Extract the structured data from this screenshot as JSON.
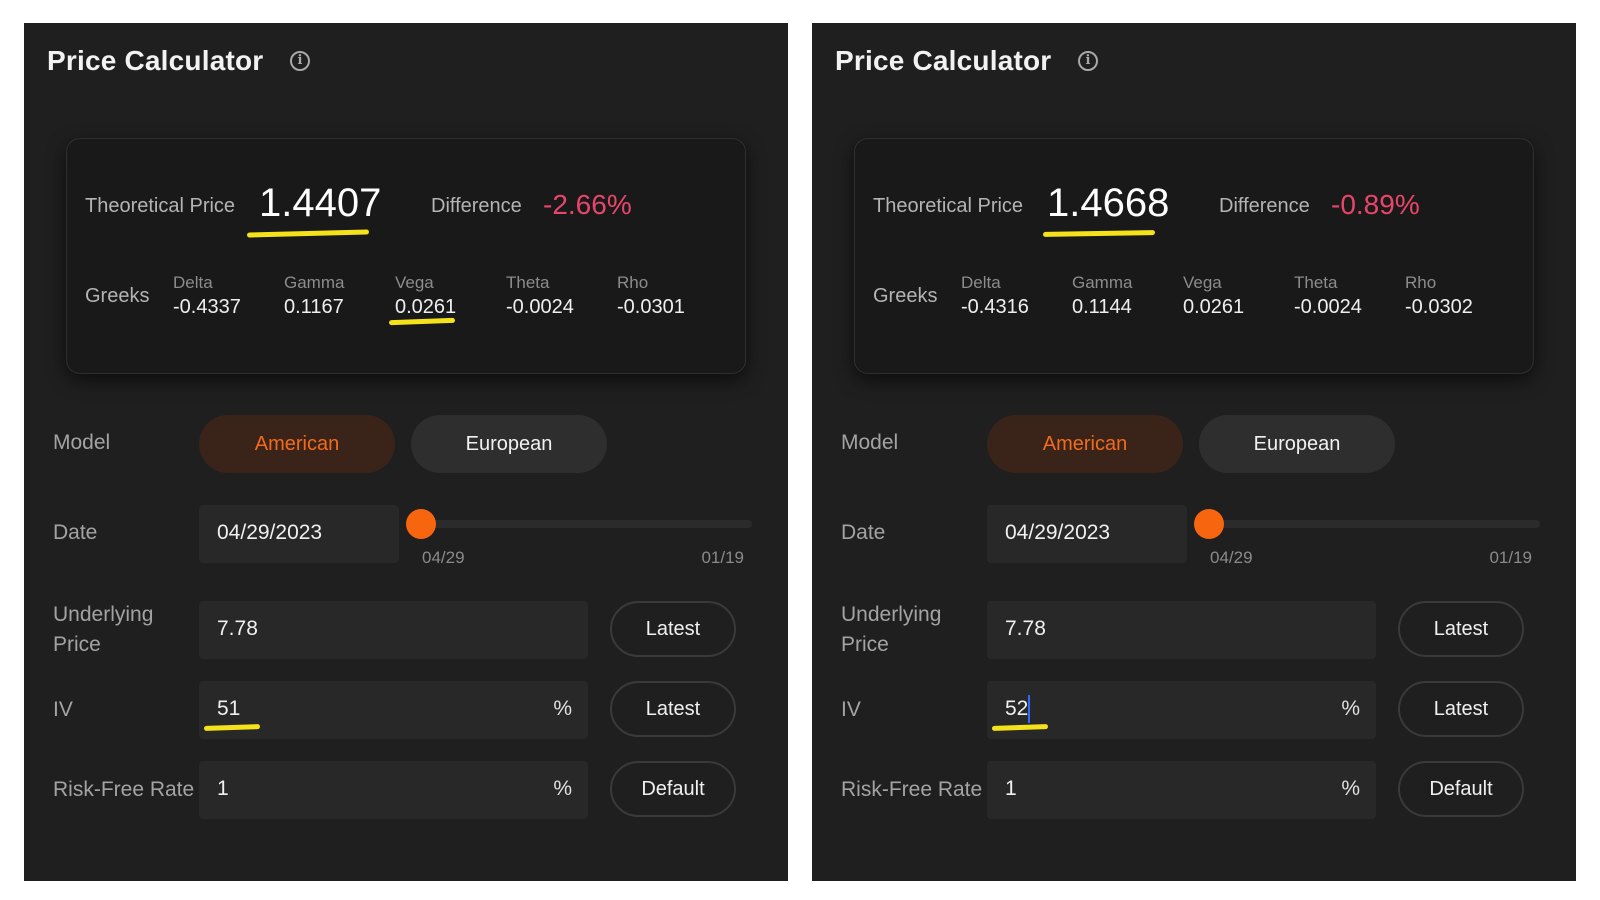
{
  "colors": {
    "panel_bg": "#1f1f1f",
    "card_bg": "#191919",
    "accent_orange": "#f26b1d",
    "difference_red": "#e8456a",
    "highlight_yellow": "#f6e21a",
    "caret_blue": "#2f6bff"
  },
  "panels": [
    {
      "title": "Price Calculator",
      "info_icon": "info-icon",
      "summary": {
        "theoretical_price_label": "Theoretical Price",
        "theoretical_price": "1.4407",
        "difference_label": "Difference",
        "difference": "-2.66%",
        "greeks_label": "Greeks",
        "greeks": [
          {
            "name": "Delta",
            "value": "-0.4337"
          },
          {
            "name": "Gamma",
            "value": "0.1167"
          },
          {
            "name": "Vega",
            "value": "0.0261"
          },
          {
            "name": "Theta",
            "value": "-0.0024"
          },
          {
            "name": "Rho",
            "value": "-0.0301"
          }
        ]
      },
      "model": {
        "label": "Model",
        "options": [
          "American",
          "European"
        ],
        "selected": "American"
      },
      "date": {
        "label": "Date",
        "value": "04/29/2023",
        "slider_start": "04/29",
        "slider_end": "01/19",
        "slider_position": 0
      },
      "underlying_price": {
        "label": "Underlying Price",
        "value": "7.78",
        "button": "Latest"
      },
      "iv": {
        "label": "IV",
        "value": "51",
        "unit": "%",
        "button": "Latest"
      },
      "risk_free_rate": {
        "label": "Risk-Free Rate",
        "value": "1",
        "unit": "%",
        "button": "Default"
      },
      "highlighted": [
        "theoretical_price",
        "vega",
        "iv"
      ]
    },
    {
      "title": "Price Calculator",
      "info_icon": "info-icon",
      "summary": {
        "theoretical_price_label": "Theoretical Price",
        "theoretical_price": "1.4668",
        "difference_label": "Difference",
        "difference": "-0.89%",
        "greeks_label": "Greeks",
        "greeks": [
          {
            "name": "Delta",
            "value": "-0.4316"
          },
          {
            "name": "Gamma",
            "value": "0.1144"
          },
          {
            "name": "Vega",
            "value": "0.0261"
          },
          {
            "name": "Theta",
            "value": "-0.0024"
          },
          {
            "name": "Rho",
            "value": "-0.0302"
          }
        ]
      },
      "model": {
        "label": "Model",
        "options": [
          "American",
          "European"
        ],
        "selected": "American"
      },
      "date": {
        "label": "Date",
        "value": "04/29/2023",
        "slider_start": "04/29",
        "slider_end": "01/19",
        "slider_position": 0
      },
      "underlying_price": {
        "label": "Underlying Price",
        "value": "7.78",
        "button": "Latest"
      },
      "iv": {
        "label": "IV",
        "value": "52",
        "unit": "%",
        "button": "Latest"
      },
      "risk_free_rate": {
        "label": "Risk-Free Rate",
        "value": "1",
        "unit": "%",
        "button": "Default"
      },
      "highlighted": [
        "theoretical_price",
        "iv"
      ]
    }
  ]
}
